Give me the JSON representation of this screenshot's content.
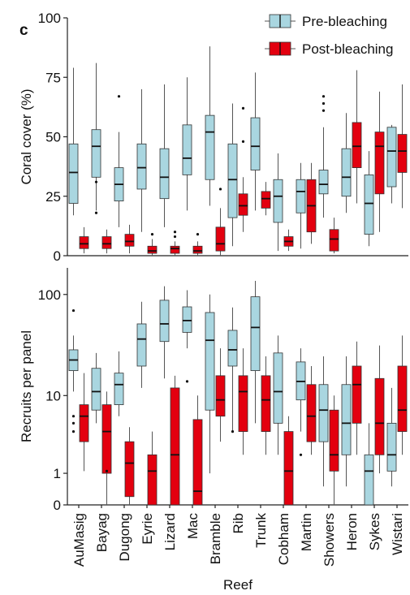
{
  "panel_label": "c",
  "colors": {
    "pre": "#a9d6e0",
    "post": "#e3000f",
    "axis": "#222222",
    "whisker": "#555555"
  },
  "chart_data": [
    {
      "type": "box",
      "ylabel": "Coral cover (%)",
      "ylim": [
        0,
        100
      ],
      "yticks": [
        0,
        25,
        50,
        75,
        100
      ],
      "legend": {
        "placement": "top-right",
        "entries": [
          "Pre-bleaching",
          "Post-bleaching"
        ]
      },
      "categories": [
        "AuMasig",
        "Bayag",
        "Dugong",
        "Eyrie",
        "Lizard",
        "Mac",
        "Bramble",
        "Rib",
        "Trunk",
        "Cobham",
        "Martin",
        "Showers",
        "Heron",
        "Sykes",
        "Wistari"
      ],
      "series": [
        {
          "name": "Pre-bleaching",
          "boxes": [
            {
              "min": 17,
              "q1": 22,
              "median": 35,
              "q3": 47,
              "max": 79,
              "outliers": []
            },
            {
              "min": 19,
              "q1": 33,
              "median": 46,
              "q3": 53,
              "max": 81,
              "outliers": [
                18,
                31
              ]
            },
            {
              "min": 12,
              "q1": 23,
              "median": 30,
              "q3": 37,
              "max": 52,
              "outliers": [
                67
              ]
            },
            {
              "min": 10,
              "q1": 28,
              "median": 37,
              "q3": 47,
              "max": 70,
              "outliers": []
            },
            {
              "min": 12,
              "q1": 24,
              "median": 33,
              "q3": 45,
              "max": 72,
              "outliers": []
            },
            {
              "min": 19,
              "q1": 34,
              "median": 41,
              "q3": 55,
              "max": 75,
              "outliers": []
            },
            {
              "min": 21,
              "q1": 32,
              "median": 52,
              "q3": 59,
              "max": 88,
              "outliers": []
            },
            {
              "min": 4,
              "q1": 16,
              "median": 32,
              "q3": 47,
              "max": 64,
              "outliers": []
            },
            {
              "min": 19,
              "q1": 36,
              "median": 46,
              "q3": 58,
              "max": 77,
              "outliers": []
            },
            {
              "min": 2,
              "q1": 14,
              "median": 25,
              "q3": 32,
              "max": 43,
              "outliers": []
            },
            {
              "min": 3,
              "q1": 18,
              "median": 27,
              "q3": 32,
              "max": 39,
              "outliers": []
            },
            {
              "min": 16,
              "q1": 26,
              "median": 30,
              "q3": 36,
              "max": 54,
              "outliers": [
                61,
                64,
                67
              ]
            },
            {
              "min": 18,
              "q1": 25,
              "median": 33,
              "q3": 45,
              "max": 60,
              "outliers": []
            },
            {
              "min": 4,
              "q1": 9,
              "median": 22,
              "q3": 34,
              "max": 44,
              "outliers": []
            },
            {
              "min": 22,
              "q1": 29,
              "median": 44,
              "q3": 54,
              "max": 55,
              "outliers": []
            }
          ]
        },
        {
          "name": "Post-bleaching",
          "boxes": [
            {
              "min": 1,
              "q1": 3,
              "median": 5,
              "q3": 8,
              "max": 12,
              "outliers": []
            },
            {
              "min": 1,
              "q1": 3,
              "median": 5,
              "q3": 8,
              "max": 11,
              "outliers": []
            },
            {
              "min": 1,
              "q1": 4,
              "median": 6,
              "q3": 9,
              "max": 13,
              "outliers": []
            },
            {
              "min": 0,
              "q1": 1,
              "median": 2,
              "q3": 4,
              "max": 7,
              "outliers": [
                9
              ]
            },
            {
              "min": 0,
              "q1": 1,
              "median": 3,
              "q3": 4,
              "max": 6,
              "outliers": [
                8,
                10
              ]
            },
            {
              "min": 0,
              "q1": 1,
              "median": 2,
              "q3": 4,
              "max": 6,
              "outliers": [
                9
              ]
            },
            {
              "min": 0,
              "q1": 2,
              "median": 5,
              "q3": 12,
              "max": 20,
              "outliers": [
                28
              ]
            },
            {
              "min": 10,
              "q1": 17,
              "median": 21,
              "q3": 26,
              "max": 33,
              "outliers": [
                48,
                62
              ]
            },
            {
              "min": 17,
              "q1": 20,
              "median": 24,
              "q3": 27,
              "max": 31,
              "outliers": []
            },
            {
              "min": 2,
              "q1": 4,
              "median": 6,
              "q3": 8,
              "max": 11,
              "outliers": []
            },
            {
              "min": 5,
              "q1": 10,
              "median": 21,
              "q3": 32,
              "max": 39,
              "outliers": []
            },
            {
              "min": 1,
              "q1": 2,
              "median": 7,
              "q3": 11,
              "max": 16,
              "outliers": []
            },
            {
              "min": 22,
              "q1": 37,
              "median": 46,
              "q3": 56,
              "max": 78,
              "outliers": []
            },
            {
              "min": 10,
              "q1": 26,
              "median": 46,
              "q3": 52,
              "max": 69,
              "outliers": []
            },
            {
              "min": 20,
              "q1": 35,
              "median": 44,
              "q3": 51,
              "max": 72,
              "outliers": []
            }
          ]
        }
      ]
    },
    {
      "type": "box",
      "ylabel": "Recruits per panel",
      "xlabel": "Reef",
      "yscale": "log1p",
      "ylim": [
        0,
        180
      ],
      "yticks": [
        0,
        1,
        10,
        100
      ],
      "yticklabels": [
        "0",
        "1",
        "10",
        "100"
      ],
      "categories": [
        "AuMasig",
        "Bayag",
        "Dugong",
        "Eyrie",
        "Lizard",
        "Mac",
        "Bramble",
        "Rib",
        "Trunk",
        "Cobham",
        "Martin",
        "Showers",
        "Heron",
        "Sykes",
        "Wistari"
      ],
      "series": [
        {
          "name": "Pre-bleaching",
          "boxes": [
            {
              "min": 11,
              "q1": 18,
              "median": 23,
              "q3": 29,
              "max": 40,
              "outliers": [
                4,
                5,
                6,
                70
              ]
            },
            {
              "min": 5,
              "q1": 7,
              "median": 11,
              "q3": 19,
              "max": 27,
              "outliers": []
            },
            {
              "min": 6,
              "q1": 8,
              "median": 13,
              "q3": 17,
              "max": 28,
              "outliers": []
            },
            {
              "min": 12,
              "q1": 20,
              "median": 37,
              "q3": 52,
              "max": 85,
              "outliers": []
            },
            {
              "min": 15,
              "q1": 35,
              "median": 52,
              "q3": 88,
              "max": 120,
              "outliers": []
            },
            {
              "min": 30,
              "q1": 43,
              "median": 56,
              "q3": 76,
              "max": 110,
              "outliers": [
                14
              ]
            },
            {
              "min": 1,
              "q1": 7,
              "median": 36,
              "q3": 67,
              "max": 100,
              "outliers": []
            },
            {
              "min": 4,
              "q1": 20,
              "median": 29,
              "q3": 45,
              "max": 75,
              "outliers": [
                4
              ]
            },
            {
              "min": 5,
              "q1": 18,
              "median": 48,
              "q3": 95,
              "max": 135,
              "outliers": []
            },
            {
              "min": 2,
              "q1": 5,
              "median": 11,
              "q3": 27,
              "max": 40,
              "outliers": []
            },
            {
              "min": 4,
              "q1": 9,
              "median": 14,
              "q3": 22,
              "max": 30,
              "outliers": [
                2
              ]
            },
            {
              "min": 0.5,
              "q1": 3,
              "median": 7,
              "q3": 13,
              "max": 25,
              "outliers": []
            },
            {
              "min": 0.5,
              "q1": 2,
              "median": 5,
              "q3": 13,
              "max": 25,
              "outliers": []
            },
            {
              "min": 0,
              "q1": 0,
              "median": 1.1,
              "q3": 2,
              "max": 5,
              "outliers": []
            },
            {
              "min": 0.5,
              "q1": 1.1,
              "median": 2,
              "q3": 5,
              "max": 12,
              "outliers": []
            }
          ]
        },
        {
          "name": "Post-bleaching",
          "boxes": [
            {
              "min": 1.1,
              "q1": 3,
              "median": 6,
              "q3": 8,
              "max": 17,
              "outliers": []
            },
            {
              "min": 0,
              "q1": 1,
              "median": 4,
              "q3": 8,
              "max": 11,
              "outliers": [
                1.1
              ]
            },
            {
              "min": 0,
              "q1": 0.2,
              "median": 1.5,
              "q3": 3,
              "max": 4.5,
              "outliers": []
            },
            {
              "min": 0,
              "q1": 0,
              "median": 1.1,
              "q3": 2,
              "max": 4,
              "outliers": []
            },
            {
              "min": 0,
              "q1": 0,
              "median": 2,
              "q3": 12,
              "max": 16,
              "outliers": []
            },
            {
              "min": 0,
              "q1": 0,
              "median": 0.35,
              "q3": 5.5,
              "max": 10,
              "outliers": []
            },
            {
              "min": 3,
              "q1": 6,
              "median": 9,
              "q3": 16,
              "max": 30,
              "outliers": []
            },
            {
              "min": 2,
              "q1": 4,
              "median": 11,
              "q3": 16,
              "max": 30,
              "outliers": []
            },
            {
              "min": 2,
              "q1": 4,
              "median": 9,
              "q3": 16,
              "max": 25,
              "outliers": []
            },
            {
              "min": 0,
              "q1": 0,
              "median": 1.1,
              "q3": 4,
              "max": 6,
              "outliers": []
            },
            {
              "min": 2,
              "q1": 3,
              "median": 6,
              "q3": 13,
              "max": 20,
              "outliers": []
            },
            {
              "min": 0,
              "q1": 1.1,
              "median": 2,
              "q3": 7,
              "max": 10,
              "outliers": []
            },
            {
              "min": 2,
              "q1": 5,
              "median": 13,
              "q3": 20,
              "max": 35,
              "outliers": []
            },
            {
              "min": 1,
              "q1": 2,
              "median": 5,
              "q3": 15,
              "max": 32,
              "outliers": []
            },
            {
              "min": 2,
              "q1": 4,
              "median": 7,
              "q3": 20,
              "max": 40,
              "outliers": []
            }
          ]
        }
      ]
    }
  ]
}
